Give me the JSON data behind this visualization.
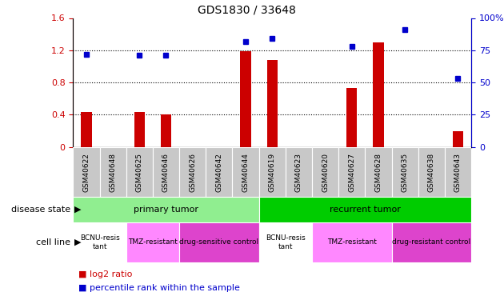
{
  "title": "GDS1830 / 33648",
  "samples": [
    "GSM40622",
    "GSM40648",
    "GSM40625",
    "GSM40646",
    "GSM40626",
    "GSM40642",
    "GSM40644",
    "GSM40619",
    "GSM40623",
    "GSM40620",
    "GSM40627",
    "GSM40628",
    "GSM40635",
    "GSM40638",
    "GSM40643"
  ],
  "log2_ratio": [
    0.43,
    0.0,
    0.43,
    0.4,
    0.0,
    0.0,
    1.19,
    1.08,
    0.0,
    0.0,
    0.73,
    1.3,
    0.0,
    0.0,
    0.2
  ],
  "percentile_rank": [
    72,
    null,
    71,
    71,
    null,
    null,
    82,
    84,
    null,
    null,
    78,
    null,
    91,
    null,
    53
  ],
  "log2_color": "#cc0000",
  "percentile_color": "#0000cc",
  "left_yaxis_ticks": [
    0,
    0.4,
    0.8,
    1.2,
    1.6
  ],
  "right_yaxis_ticks": [
    0,
    25,
    50,
    75,
    100
  ],
  "left_ylim": [
    0,
    1.6
  ],
  "right_ylim": [
    0,
    100
  ],
  "disease_state_groups": [
    {
      "label": "primary tumor",
      "start": 0,
      "end": 7,
      "color": "#90EE90"
    },
    {
      "label": "recurrent tumor",
      "start": 7,
      "end": 15,
      "color": "#00cc00"
    }
  ],
  "cell_line_groups": [
    {
      "label": "BCNU-resis\ntant",
      "start": 0,
      "end": 2,
      "color": "#ffffff"
    },
    {
      "label": "TMZ-resistant",
      "start": 2,
      "end": 4,
      "color": "#ff88ff"
    },
    {
      "label": "drug-sensitive control",
      "start": 4,
      "end": 7,
      "color": "#dd44cc"
    },
    {
      "label": "BCNU-resis\ntant",
      "start": 7,
      "end": 9,
      "color": "#ffffff"
    },
    {
      "label": "TMZ-resistant",
      "start": 9,
      "end": 12,
      "color": "#ff88ff"
    },
    {
      "label": "drug-resistant control",
      "start": 12,
      "end": 15,
      "color": "#dd44cc"
    }
  ],
  "disease_state_label": "disease state",
  "cell_line_label": "cell line",
  "legend_log2": "log2 ratio",
  "legend_pct": "percentile rank within the sample",
  "background_color": "#ffffff",
  "axis_color_left": "#cc0000",
  "axis_color_right": "#0000cc",
  "tick_bg_color": "#c8c8c8",
  "bar_width": 0.4,
  "title_fontsize": 10,
  "tick_fontsize": 6.5,
  "annot_fontsize": 8,
  "legend_fontsize": 8
}
